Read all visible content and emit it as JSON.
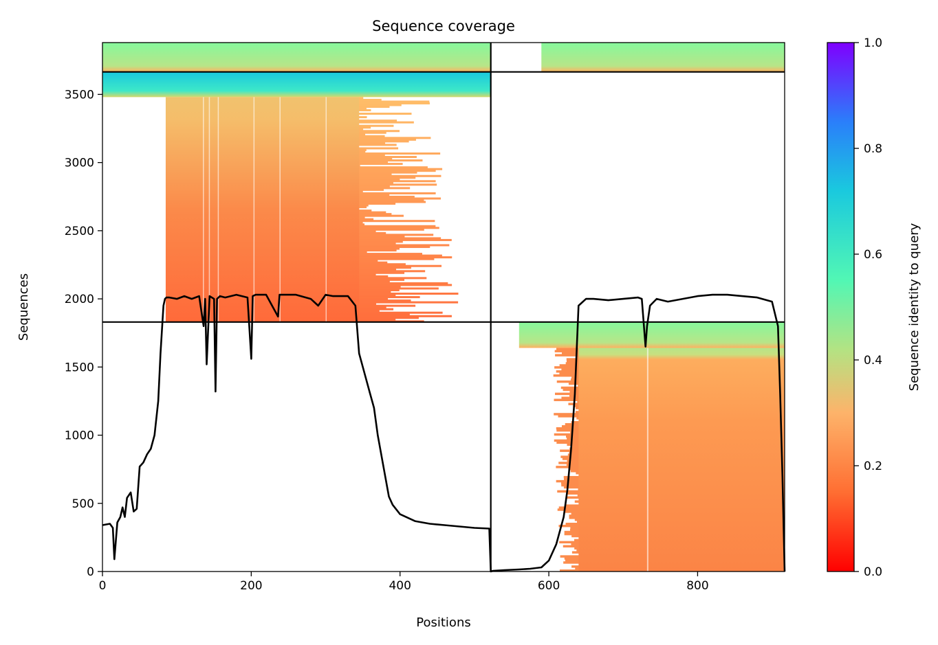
{
  "chart_data": {
    "type": "heatmap",
    "title": "Sequence coverage",
    "xlabel": "Positions",
    "ylabel": "Sequences",
    "xlim": [
      0,
      917
    ],
    "ylim": [
      0,
      3880
    ],
    "xticks": [
      0,
      200,
      400,
      600,
      800
    ],
    "yticks": [
      0,
      500,
      1000,
      1500,
      2000,
      2500,
      3000,
      3500
    ],
    "divider_x": 522,
    "divider_y": [
      1830,
      3665
    ],
    "colorbar": {
      "label": "Sequence identity to query",
      "range": [
        0,
        1
      ],
      "ticks": [
        "0.0",
        "0.2",
        "0.4",
        "0.6",
        "0.8",
        "1.0"
      ],
      "colormap": [
        "#ff0000",
        "#ff7a3c",
        "#fdb36a",
        "#b3e383",
        "#52f7b4",
        "#21c4de",
        "#2a7ffa",
        "#7f00ff"
      ]
    },
    "coverage_line": {
      "color": "#000000",
      "x": [
        0,
        10,
        14,
        16,
        20,
        24,
        27,
        30,
        33,
        38,
        42,
        46,
        50,
        55,
        60,
        65,
        70,
        75,
        78,
        82,
        84,
        86,
        90,
        100,
        110,
        120,
        130,
        136,
        138,
        140,
        144,
        150,
        152,
        154,
        158,
        165,
        180,
        195,
        200,
        202,
        206,
        220,
        236,
        238,
        242,
        260,
        280,
        290,
        300,
        310,
        320,
        330,
        340,
        345,
        350,
        355,
        360,
        365,
        370,
        380,
        385,
        390,
        400,
        420,
        440,
        460,
        480,
        500,
        520,
        522,
        525,
        540,
        560,
        575,
        590,
        600,
        610,
        620,
        625,
        630,
        635,
        640,
        650,
        660,
        680,
        700,
        720,
        725,
        730,
        732,
        736,
        745,
        760,
        780,
        800,
        820,
        840,
        860,
        880,
        900,
        908,
        911,
        914,
        917
      ],
      "y": [
        340,
        350,
        320,
        90,
        360,
        400,
        470,
        400,
        540,
        580,
        440,
        460,
        770,
        800,
        860,
        900,
        1000,
        1250,
        1600,
        1950,
        2000,
        2010,
        2010,
        2000,
        2020,
        2000,
        2020,
        1800,
        2000,
        1520,
        2020,
        2000,
        1320,
        2000,
        2020,
        2010,
        2030,
        2010,
        1560,
        2020,
        2030,
        2030,
        1870,
        2030,
        2030,
        2030,
        2000,
        1950,
        2030,
        2020,
        2020,
        2020,
        1950,
        1600,
        1500,
        1400,
        1300,
        1200,
        1000,
        700,
        550,
        490,
        420,
        370,
        350,
        340,
        330,
        320,
        315,
        0,
        5,
        10,
        15,
        20,
        30,
        80,
        200,
        400,
        600,
        900,
        1300,
        1950,
        2000,
        2000,
        1990,
        2000,
        2010,
        2000,
        1650,
        1800,
        1950,
        2000,
        1980,
        2000,
        2020,
        2030,
        2030,
        2020,
        2010,
        1980,
        1800,
        1300,
        700,
        0
      ]
    }
  }
}
